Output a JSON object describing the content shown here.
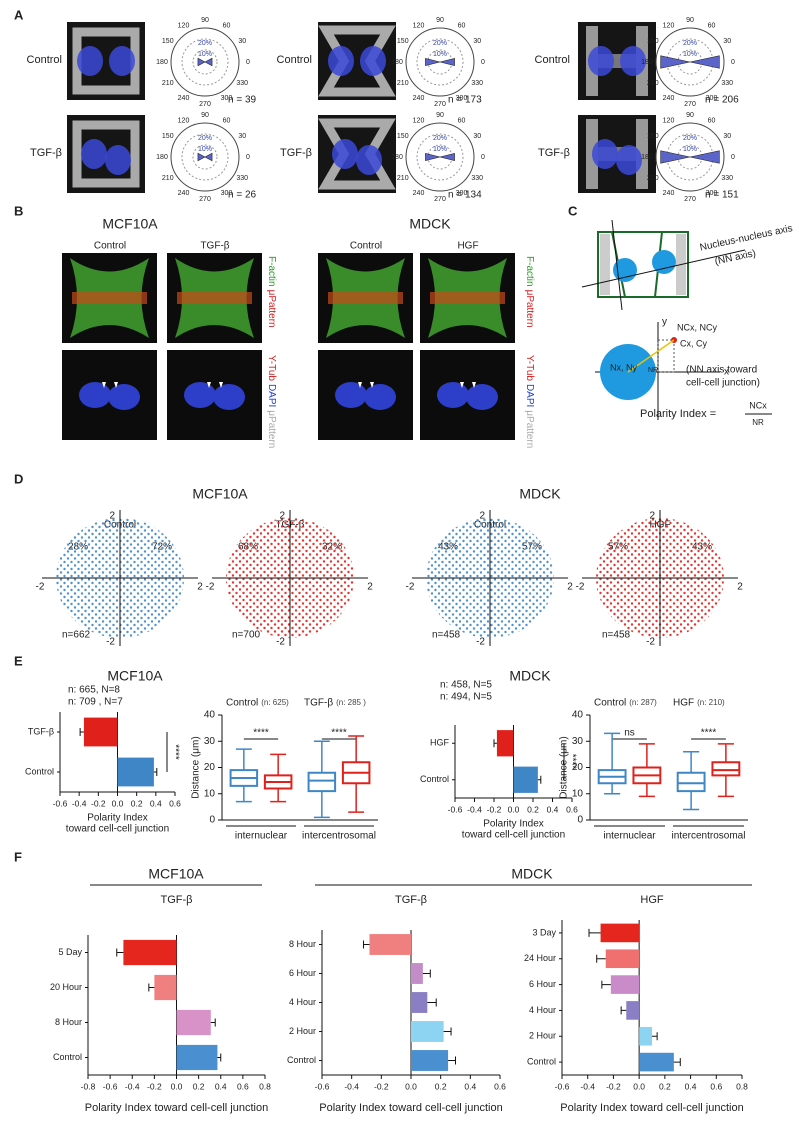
{
  "figure": {
    "panel_labels": [
      "A",
      "B",
      "C",
      "D",
      "E",
      "F"
    ],
    "a": {
      "rows": [
        "Control",
        "TGF-β"
      ],
      "polar_angles": [
        "90",
        "60",
        "30",
        "0",
        "330",
        "300",
        "270",
        "240",
        "210",
        "180",
        "150",
        "120"
      ],
      "polar_rings": [
        "10%",
        "20%"
      ],
      "n": [
        [
          "n = 39",
          "n = 26"
        ],
        [
          "n = 173",
          "n = 134"
        ],
        [
          "n = 206",
          "n = 151"
        ]
      ]
    },
    "b": {
      "cell_lines": [
        "MCF10A",
        "MDCK"
      ],
      "conditions": [
        [
          "Control",
          "TGF-β"
        ],
        [
          "Control",
          "HGF"
        ]
      ],
      "stain_top": [
        "F-actin",
        "μPattern"
      ],
      "stain_bottom": [
        "Y-Tub",
        "DAPI",
        "μPattern"
      ]
    },
    "c": {
      "axis_label": [
        "Nucleus-nucleus axis",
        "(NN axis)"
      ],
      "y": "y",
      "x": "x",
      "nc": "NCx, NCy",
      "c": "Cx, Cy",
      "n": "Nx, Ny",
      "nr": "NR",
      "note": [
        "(NN  axis toward",
        "cell-cell junction)"
      ],
      "formula": "Polarity Index =",
      "numerator": "NCx",
      "denominator": "NR"
    },
    "d": {
      "cell_lines": [
        "MCF10A",
        "MDCK"
      ],
      "ticks": [
        "2",
        "-2"
      ],
      "plots": [
        {
          "title": "Control",
          "left": "28%",
          "right": "72%",
          "n": "n=662",
          "color": "#3f86c6"
        },
        {
          "title": "TGF-β",
          "left": "68%",
          "right": "32%",
          "n": "n=700",
          "color": "#e0201b"
        },
        {
          "title": "Control",
          "left": "43%",
          "right": "57%",
          "n": "n=458",
          "color": "#3f86c6"
        },
        {
          "title": "HGF",
          "left": "57%",
          "right": "43%",
          "n": "n=458",
          "color": "#e0201b"
        }
      ]
    },
    "e": {
      "cell_lines": [
        "MCF10A",
        "MDCK"
      ],
      "counts": [
        [
          "n: 665, N=8",
          "n: 709 , N=7"
        ],
        [
          "n: 458, N=5",
          "n: 494, N=5"
        ]
      ]
    },
    "f": {
      "cell_lines": [
        "MCF10A",
        "MDCK"
      ]
    }
  },
  "chart_data": [
    {
      "type": "hbar",
      "categories": [
        "TGF-β",
        "Control"
      ],
      "values": [
        -0.35,
        0.38
      ],
      "errors": [
        0.04,
        0.03
      ],
      "colors": [
        "#e0201b",
        "#3f86c6"
      ],
      "xlim": [
        -0.6,
        0.6
      ],
      "xticks": [
        -0.6,
        -0.4,
        -0.2,
        {
          "value": 0,
          "label": "0.0"
        },
        0.2,
        0.4,
        0.6
      ],
      "xlabel": [
        "Polarity Index",
        "toward cell-cell junction"
      ],
      "annotation": "****"
    },
    {
      "type": "box",
      "categories": [
        "internuclear",
        "intercentrosomal"
      ],
      "ylabel": "Distance (μm)",
      "ylim": [
        0,
        40
      ],
      "yticks": [
        0,
        10,
        20,
        30,
        40
      ],
      "annotations": [
        "****",
        "****"
      ],
      "series": [
        {
          "name": "Control",
          "n_label": "(n: 625)",
          "color": "#3f86c6",
          "boxes": [
            [
              7,
              13,
              16,
              19,
              27
            ],
            [
              1,
              11,
              15,
              18,
              30
            ]
          ]
        },
        {
          "name": "TGF-β",
          "n_label": "(n: 285 )",
          "color": "#e0201b",
          "boxes": [
            [
              7,
              12,
              14.5,
              17,
              25
            ],
            [
              3,
              14,
              18,
              22,
              32
            ]
          ]
        }
      ]
    },
    {
      "type": "hbar",
      "categories": [
        "HGF",
        "Control"
      ],
      "values": [
        -0.17,
        0.25
      ],
      "errors": [
        0.03,
        0.03
      ],
      "colors": [
        "#e0201b",
        "#3f86c6"
      ],
      "xlim": [
        -0.6,
        0.6
      ],
      "xticks": [
        -0.6,
        -0.4,
        -0.2,
        {
          "value": 0,
          "label": "0.0"
        },
        0.2,
        0.4,
        0.6
      ],
      "xlabel": [
        "Polarity Index",
        "toward cell-cell junction"
      ],
      "annotation": "****"
    },
    {
      "type": "box",
      "categories": [
        "internuclear",
        "intercentrosomal"
      ],
      "ylabel": "Distance (μm)",
      "ylim": [
        0,
        40
      ],
      "yticks": [
        0,
        10,
        20,
        30,
        40
      ],
      "annotations": [
        "ns",
        "****"
      ],
      "series": [
        {
          "name": "Control",
          "n_label": "(n: 287)",
          "color": "#3f86c6",
          "boxes": [
            [
              10,
              14,
              16.5,
              19,
              33
            ],
            [
              4,
              11,
              14,
              18,
              26
            ]
          ]
        },
        {
          "name": "HGF",
          "n_label": "(n: 210)",
          "color": "#e0201b",
          "boxes": [
            [
              9,
              14,
              17,
              20,
              29
            ],
            [
              9,
              17,
              19,
              22,
              29
            ]
          ]
        }
      ]
    },
    {
      "type": "hbar",
      "title": "TGF-β",
      "categories": [
        "5 Day",
        "20 Hour",
        "8 Hour",
        "Control"
      ],
      "values": [
        -0.48,
        -0.2,
        0.31,
        0.37
      ],
      "errors": [
        0.06,
        0.05,
        0.04,
        0.03
      ],
      "colors": [
        "#e5261f",
        "#f08080",
        "#d892c8",
        "#4a8fd0"
      ],
      "xlim": [
        -0.8,
        0.8
      ],
      "xticks": [
        -0.8,
        -0.6,
        -0.4,
        -0.2,
        {
          "value": 0,
          "label": "0.0"
        },
        0.2,
        0.4,
        0.6,
        0.8
      ],
      "xlabel": "Polarity Index toward cell-cell junction"
    },
    {
      "type": "hbar",
      "title": "TGF-β",
      "categories": [
        "8 Hour",
        "6 Hour",
        "4 Hour",
        "2 Hour",
        "Control"
      ],
      "values": [
        -0.28,
        0.08,
        0.11,
        0.22,
        0.25
      ],
      "errors": [
        0.04,
        0.05,
        0.06,
        0.05,
        0.05
      ],
      "colors": [
        "#f08080",
        "#c48cc8",
        "#8a7ec4",
        "#8dd3f2",
        "#4a8fd0"
      ],
      "xlim": [
        -0.6,
        0.6
      ],
      "xticks": [
        -0.6,
        -0.4,
        -0.2,
        {
          "value": 0,
          "label": "0.0"
        },
        0.2,
        0.4,
        0.6
      ],
      "xlabel": "Polarity Index toward cell-cell junction"
    },
    {
      "type": "hbar",
      "title": "HGF",
      "categories": [
        "3 Day",
        "24 Hour",
        "6 Hour",
        "4 Hour",
        "2 Hour",
        "Control"
      ],
      "values": [
        -0.3,
        -0.26,
        -0.22,
        -0.1,
        0.1,
        0.27
      ],
      "errors": [
        0.09,
        0.07,
        0.07,
        0.04,
        0.04,
        0.05
      ],
      "colors": [
        "#e5261f",
        "#f07070",
        "#c98cc8",
        "#8a7ec4",
        "#8dd3f2",
        "#4a8fd0"
      ],
      "xlim": [
        -0.6,
        0.8
      ],
      "xticks": [
        -0.6,
        -0.4,
        -0.2,
        {
          "value": 0,
          "label": "0.0"
        },
        0.2,
        0.4,
        0.6,
        0.8
      ],
      "xlabel": "Polarity Index toward cell-cell junction"
    }
  ]
}
